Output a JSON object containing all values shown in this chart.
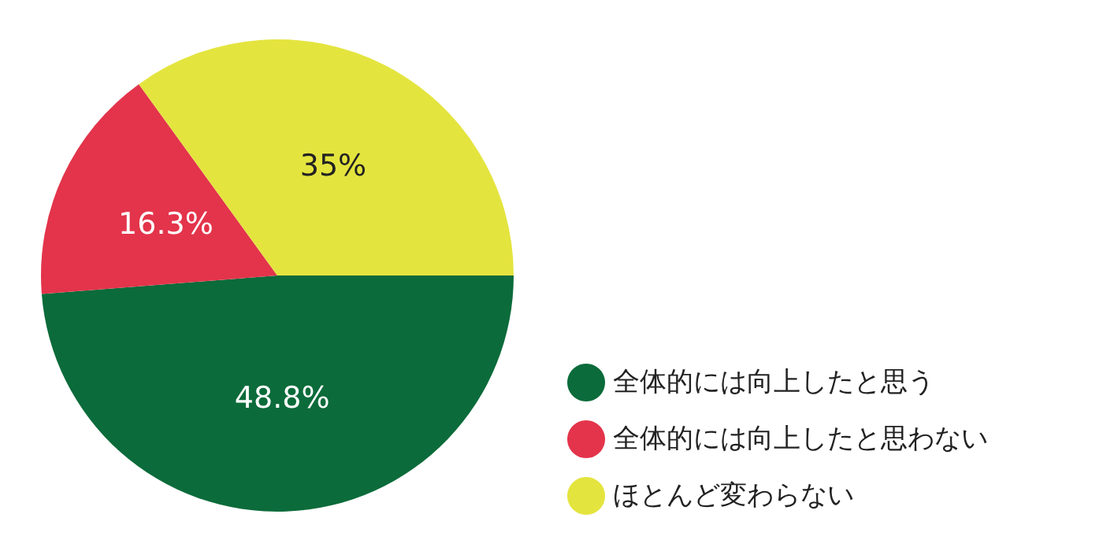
{
  "chart_data": {
    "type": "pie",
    "categories": [
      "全体的には向上したと思う",
      "全体的には向上したと思わない",
      "ほとんど変わらない"
    ],
    "values": [
      48.8,
      16.3,
      35
    ],
    "colors": [
      "#0b6b3a",
      "#e3344b",
      "#e4e43f"
    ],
    "value_labels": [
      "48.8%",
      "16.3%",
      "35%"
    ],
    "legend": "bottom right"
  }
}
